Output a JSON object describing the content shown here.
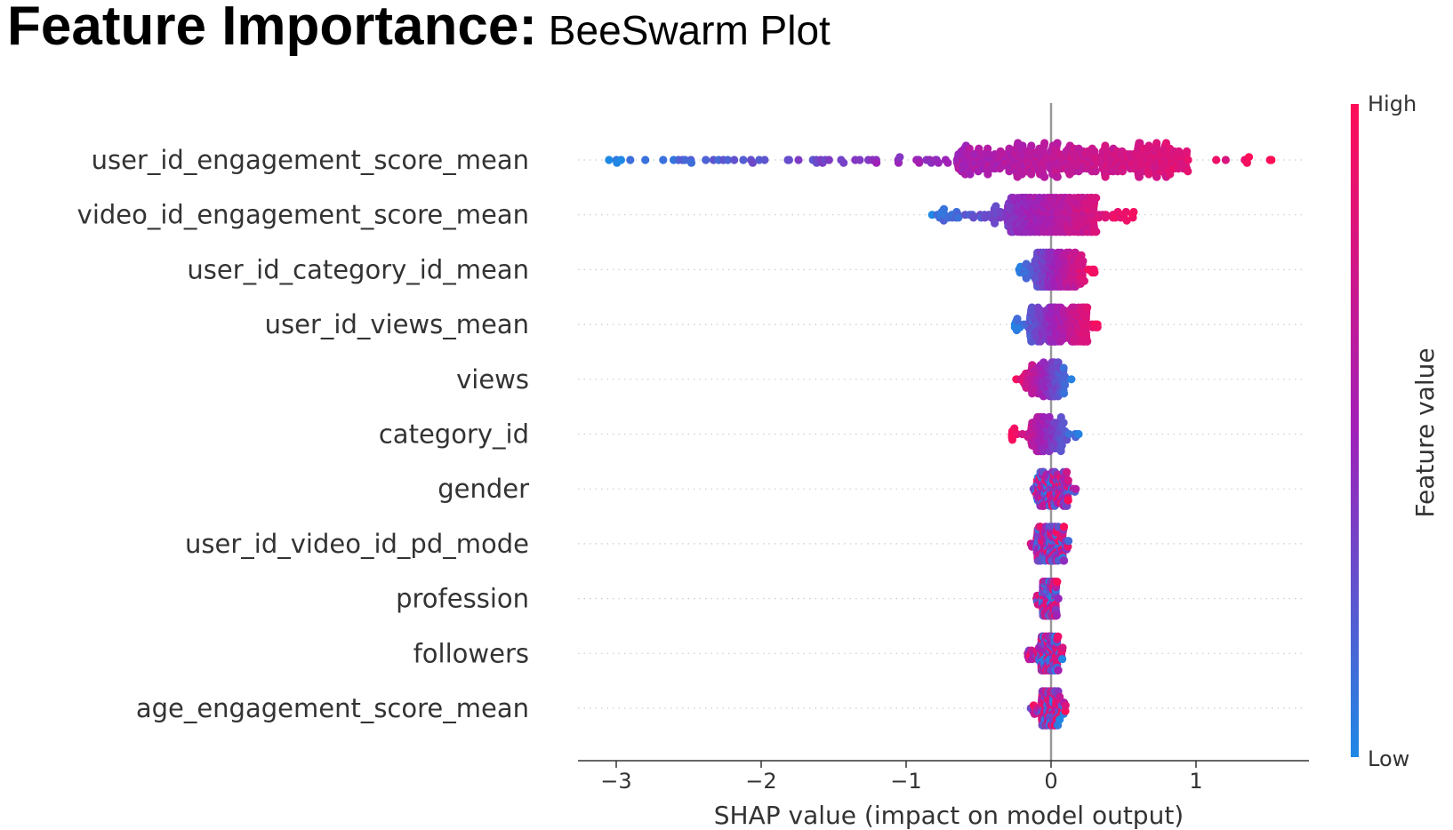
{
  "title": {
    "main": "Feature Importance:",
    "sub": " BeeSwarm Plot"
  },
  "colors": {
    "low": "#1e88e5",
    "high": "#ff0d57",
    "mid": "#a020b8",
    "axis": "#333333",
    "zero_line": "#999999"
  },
  "chart_data": {
    "type": "scatter",
    "subtype": "shap_beeswarm",
    "xlabel": "SHAP value (impact on model output)",
    "xlim": [
      -3.3,
      1.8
    ],
    "xticks": [
      -3,
      -2,
      -1,
      0,
      1
    ],
    "xtick_labels": [
      "−3",
      "−2",
      "−1",
      "0",
      "1"
    ],
    "grid": "dotted horizontal row guides",
    "colorbar": {
      "label": "Feature value",
      "high_label": "High",
      "low_label": "Low"
    },
    "features": [
      {
        "name": "user_id_engagement_score_mean",
        "min": -3.05,
        "max": 1.52,
        "core": [
          -0.65,
          0.95
        ],
        "trend": "positive"
      },
      {
        "name": "video_id_engagement_score_mean",
        "min": -0.82,
        "max": 0.57,
        "core": [
          -0.3,
          0.3
        ],
        "trend": "positive"
      },
      {
        "name": "user_id_category_id_mean",
        "min": -0.22,
        "max": 0.3,
        "core": [
          -0.12,
          0.22
        ],
        "trend": "positive"
      },
      {
        "name": "user_id_views_mean",
        "min": -0.25,
        "max": 0.32,
        "core": [
          -0.15,
          0.25
        ],
        "trend": "positive"
      },
      {
        "name": "views",
        "min": -0.24,
        "max": 0.14,
        "core": [
          -0.2,
          0.1
        ],
        "trend": "negative"
      },
      {
        "name": "category_id",
        "min": -0.27,
        "max": 0.19,
        "core": [
          -0.14,
          0.08
        ],
        "trend": "negative"
      },
      {
        "name": "gender",
        "min": -0.12,
        "max": 0.17,
        "core": [
          -0.1,
          0.12
        ],
        "trend": "mixed"
      },
      {
        "name": "user_id_video_id_pd_mode",
        "min": -0.14,
        "max": 0.12,
        "core": [
          -0.1,
          0.09
        ],
        "trend": "mixed"
      },
      {
        "name": "profession",
        "min": -0.1,
        "max": 0.05,
        "core": [
          -0.06,
          0.04
        ],
        "trend": "mixed"
      },
      {
        "name": "followers",
        "min": -0.16,
        "max": 0.08,
        "core": [
          -0.07,
          0.05
        ],
        "trend": "mixed"
      },
      {
        "name": "age_engagement_score_mean",
        "min": -0.14,
        "max": 0.1,
        "core": [
          -0.07,
          0.06
        ],
        "trend": "mixed"
      }
    ]
  }
}
